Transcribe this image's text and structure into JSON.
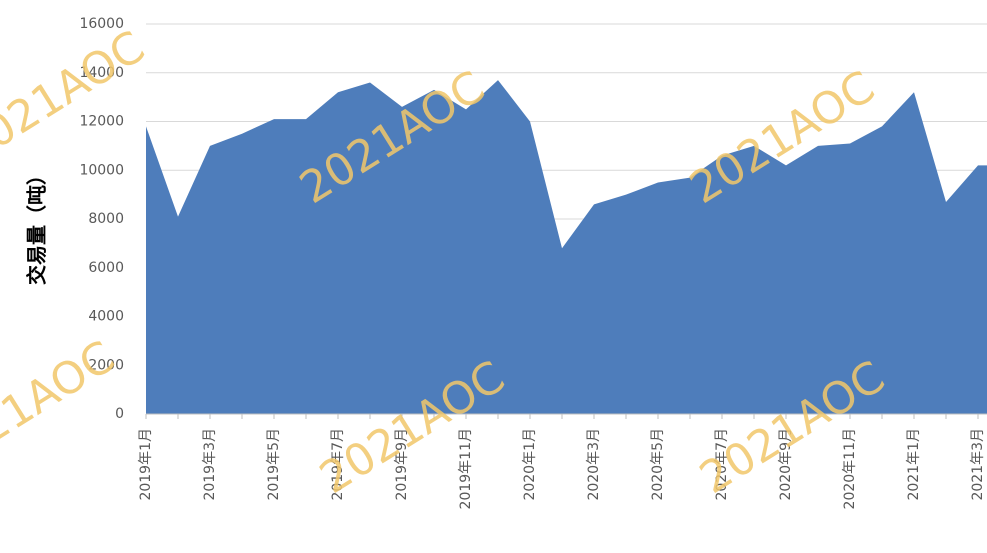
{
  "chart_data": {
    "type": "area",
    "y_label": "交易量（吨）",
    "watermark": "2021AOC",
    "categories": [
      "2019年1月",
      null,
      "2019年3月",
      null,
      "2019年5月",
      null,
      "2019年7月",
      null,
      "2019年9月",
      null,
      "2019年11月",
      null,
      "2020年1月",
      null,
      "2020年3月",
      null,
      "2020年5月",
      null,
      "2020年7月",
      null,
      "2020年9月",
      null,
      "2020年11月",
      null,
      "2021年1月",
      null,
      "2021年3月"
    ],
    "values": [
      11800,
      8100,
      11000,
      11500,
      12100,
      12100,
      13200,
      13600,
      12600,
      13300,
      12500,
      13700,
      12000,
      6800,
      8600,
      9000,
      9500,
      9700,
      10600,
      11000,
      10200,
      11000,
      11100,
      11800,
      13200,
      8700,
      10200
    ],
    "color": "#4e7dbb",
    "ylim": [
      0,
      16000
    ],
    "yticks": [
      0,
      2000,
      4000,
      6000,
      8000,
      10000,
      12000,
      14000,
      16000
    ],
    "grid": true
  }
}
